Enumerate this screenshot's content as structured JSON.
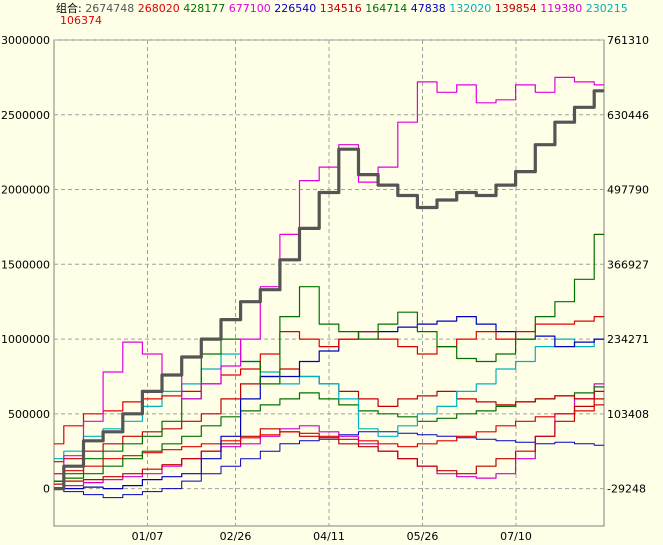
{
  "chart_data": {
    "type": "line",
    "title": "",
    "legend": {
      "label": "组合:",
      "entries": [
        {
          "value": "2674748",
          "color": "#555555"
        },
        {
          "value": "268020",
          "color": "#E00000"
        },
        {
          "value": "428177",
          "color": "#007000"
        },
        {
          "value": "677100",
          "color": "#E000E0"
        },
        {
          "value": "226540",
          "color": "#0000C0"
        },
        {
          "value": "134516",
          "color": "#C00000"
        },
        {
          "value": "164714",
          "color": "#007000"
        },
        {
          "value": "47838",
          "color": "#0000C0"
        },
        {
          "value": "132020",
          "color": "#00B0C0"
        },
        {
          "value": "139854",
          "color": "#C00000"
        },
        {
          "value": "119380",
          "color": "#D000D0"
        },
        {
          "value": "230215",
          "color": "#00B0C0"
        },
        {
          "value": "106374",
          "color": "#E00000"
        }
      ],
      "placement": "top"
    },
    "x_ticks": [
      "01/07",
      "02/26",
      "04/11",
      "05/26",
      "07/10"
    ],
    "y_left": {
      "ticks": [
        3000000,
        2500000,
        2000000,
        1500000,
        1000000,
        500000,
        0
      ],
      "range": [
        -250000,
        3000000
      ]
    },
    "y_right": {
      "ticks": [
        "761310",
        "630446",
        "497790",
        "366927",
        "234271",
        "103408",
        "-29248"
      ]
    },
    "grid": true,
    "series": [
      {
        "color": "#555555",
        "width": 3.2,
        "values": [
          0,
          150000,
          320000,
          380000,
          500000,
          650000,
          760000,
          880000,
          1000000,
          1130000,
          1250000,
          1330000,
          1530000,
          1740000,
          1980000,
          2270000,
          2100000,
          2030000,
          1960000,
          1880000,
          1930000,
          1980000,
          1960000,
          2030000,
          2120000,
          2300000,
          2450000,
          2550000,
          2660000
        ]
      },
      {
        "color": "#E000E0",
        "width": 1.2,
        "values": [
          100000,
          220000,
          450000,
          780000,
          980000,
          900000,
          760000,
          600000,
          700000,
          820000,
          1000000,
          1350000,
          1700000,
          2060000,
          2150000,
          2300000,
          2050000,
          2150000,
          2450000,
          2720000,
          2650000,
          2700000,
          2580000,
          2600000,
          2700000,
          2650000,
          2750000,
          2720000,
          2700000
        ]
      },
      {
        "color": "#007000",
        "width": 1.2,
        "values": [
          50000,
          100000,
          200000,
          250000,
          300000,
          350000,
          450000,
          600000,
          900000,
          1000000,
          850000,
          700000,
          1150000,
          1350000,
          1100000,
          1050000,
          1000000,
          1100000,
          1180000,
          1050000,
          950000,
          870000,
          850000,
          900000,
          1000000,
          1150000,
          1250000,
          1400000,
          1700000
        ]
      },
      {
        "color": "#E00000",
        "width": 1.2,
        "values": [
          300000,
          420000,
          500000,
          520000,
          580000,
          600000,
          620000,
          650000,
          700000,
          760000,
          800000,
          900000,
          1050000,
          1000000,
          950000,
          1000000,
          1050000,
          1000000,
          950000,
          900000,
          950000,
          1000000,
          1050000,
          1000000,
          1050000,
          1100000,
          1100000,
          1120000,
          1150000
        ]
      },
      {
        "color": "#0000C0",
        "width": 1.2,
        "values": [
          50000,
          0,
          10000,
          0,
          20000,
          60000,
          80000,
          100000,
          200000,
          350000,
          600000,
          750000,
          750000,
          850000,
          920000,
          1000000,
          1050000,
          1050000,
          1080000,
          1100000,
          1120000,
          1150000,
          1100000,
          1050000,
          1000000,
          1020000,
          950000,
          980000,
          1000000
        ]
      },
      {
        "color": "#00B0C0",
        "width": 1.2,
        "values": [
          200000,
          250000,
          350000,
          400000,
          450000,
          550000,
          650000,
          700000,
          800000,
          900000,
          850000,
          780000,
          700000,
          750000,
          700000,
          600000,
          400000,
          350000,
          420000,
          500000,
          550000,
          650000,
          700000,
          800000,
          850000,
          950000,
          1000000,
          950000,
          1000000
        ]
      },
      {
        "color": "#C00000",
        "width": 1.2,
        "values": [
          180000,
          200000,
          250000,
          300000,
          350000,
          380000,
          400000,
          450000,
          500000,
          600000,
          700000,
          750000,
          800000,
          750000,
          700000,
          650000,
          600000,
          550000,
          600000,
          620000,
          650000,
          600000,
          580000,
          560000,
          580000,
          600000,
          620000,
          600000,
          650000
        ]
      },
      {
        "color": "#007000",
        "width": 1.2,
        "values": [
          50000,
          70000,
          100000,
          150000,
          200000,
          250000,
          300000,
          350000,
          420000,
          480000,
          520000,
          560000,
          600000,
          640000,
          600000,
          560000,
          520000,
          500000,
          480000,
          450000,
          470000,
          500000,
          520000,
          550000,
          580000,
          600000,
          620000,
          640000,
          680000
        ]
      },
      {
        "color": "#E00000",
        "width": 1.2,
        "values": [
          100000,
          120000,
          150000,
          200000,
          220000,
          240000,
          260000,
          280000,
          300000,
          320000,
          340000,
          360000,
          380000,
          370000,
          350000,
          330000,
          320000,
          300000,
          280000,
          300000,
          320000,
          350000,
          380000,
          420000,
          450000,
          480000,
          500000,
          520000,
          560000
        ]
      },
      {
        "color": "#C00000",
        "width": 1.2,
        "values": [
          30000,
          50000,
          60000,
          80000,
          100000,
          130000,
          160000,
          200000,
          250000,
          300000,
          350000,
          400000,
          380000,
          350000,
          330000,
          300000,
          280000,
          250000,
          200000,
          150000,
          120000,
          100000,
          150000,
          200000,
          250000,
          350000,
          450000,
          550000,
          600000
        ]
      },
      {
        "color": "#D000D0",
        "width": 1.2,
        "values": [
          0,
          20000,
          40000,
          60000,
          80000,
          100000,
          150000,
          200000,
          250000,
          280000,
          300000,
          350000,
          400000,
          420000,
          380000,
          350000,
          300000,
          250000,
          200000,
          150000,
          100000,
          80000,
          70000,
          100000,
          200000,
          350000,
          500000,
          600000,
          700000
        ]
      },
      {
        "color": "#0000C0",
        "width": 1.0,
        "values": [
          0,
          -20000,
          -40000,
          -60000,
          -40000,
          -20000,
          0,
          50000,
          100000,
          150000,
          200000,
          250000,
          300000,
          320000,
          340000,
          360000,
          380000,
          380000,
          370000,
          360000,
          350000,
          340000,
          330000,
          320000,
          310000,
          300000,
          310000,
          300000,
          290000
        ]
      }
    ]
  }
}
